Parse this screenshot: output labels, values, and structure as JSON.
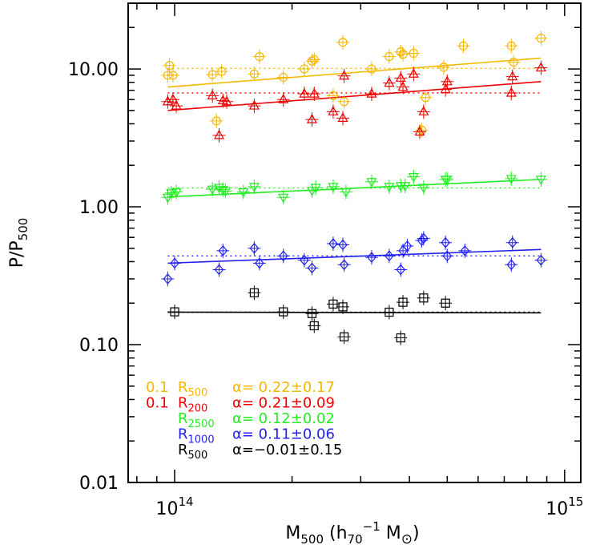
{
  "chart_data": {
    "type": "scatter",
    "xlabel": {
      "base": "M",
      "sub": "500",
      "rest1": " (h",
      "sub2": "70",
      "sup2": "−1",
      "rest2": " M",
      "sym": "⊙",
      "rest3": ")"
    },
    "ylabel": {
      "base": "P/P",
      "sub": "500"
    },
    "x_scale": "log",
    "y_scale": "log",
    "xlim": [
      76000000000000.0,
      1100000000000000.0
    ],
    "ylim": [
      0.01,
      30
    ],
    "x_ticks": [
      {
        "value": 100000000000000.0,
        "base": "10",
        "exp": "14"
      },
      {
        "value": 1000000000000000.0,
        "base": "10",
        "exp": "15"
      }
    ],
    "y_ticks": [
      {
        "value": 0.01,
        "label": "0.01"
      },
      {
        "value": 0.1,
        "label": "0.10"
      },
      {
        "value": 1,
        "label": "1.00"
      },
      {
        "value": 10,
        "label": "10.00"
      }
    ],
    "series": [
      {
        "key": "orange",
        "color": "#f5b800",
        "marker": "circle-plus",
        "legend": {
          "prefix": "0.1 ",
          "r": "R",
          "rsub": "500",
          "alpha": "α=  0.22±0.17"
        },
        "fit": {
          "x0": 96000000000000.0,
          "y0": 7.4,
          "x1": 870000000000000.0,
          "y1": 12.0
        },
        "mean": 10.1,
        "points": [
          [
            96000000000000.0,
            9.0
          ],
          [
            97000000000000.0,
            10.6
          ],
          [
            99000000000000.0,
            9.0
          ],
          [
            125000000000000.0,
            9.1
          ],
          [
            132000000000000.0,
            9.6
          ],
          [
            128000000000000.0,
            4.2
          ],
          [
            160000000000000.0,
            9.2
          ],
          [
            165000000000000.0,
            12.3
          ],
          [
            190000000000000.0,
            8.7
          ],
          [
            215000000000000.0,
            10.0
          ],
          [
            225000000000000.0,
            11.4
          ],
          [
            228000000000000.0,
            11.7
          ],
          [
            255000000000000.0,
            6.4
          ],
          [
            272000000000000.0,
            5.8
          ],
          [
            270000000000000.0,
            15.6
          ],
          [
            320000000000000.0,
            10.0
          ],
          [
            355000000000000.0,
            12.3
          ],
          [
            380000000000000.0,
            13.3
          ],
          [
            385000000000000.0,
            12.8
          ],
          [
            410000000000000.0,
            13.0
          ],
          [
            430000000000000.0,
            3.6
          ],
          [
            440000000000000.0,
            6.2
          ],
          [
            490000000000000.0,
            10.3
          ],
          [
            550000000000000.0,
            14.7
          ],
          [
            730000000000000.0,
            14.7
          ],
          [
            740000000000000.0,
            11.2
          ],
          [
            870000000000000.0,
            16.7
          ]
        ]
      },
      {
        "key": "red",
        "color": "#ee0000",
        "marker": "triangle-up",
        "legend": {
          "prefix": "0.1 ",
          "r": "R",
          "rsub": "200",
          "alpha": "α=  0.21±0.09"
        },
        "fit": {
          "x0": 96000000000000.0,
          "y0": 5.0,
          "x1": 870000000000000.0,
          "y1": 8.1
        },
        "mean": 6.7,
        "points": [
          [
            96000000000000.0,
            5.8
          ],
          [
            99000000000000.0,
            6.0
          ],
          [
            101000000000000.0,
            5.4
          ],
          [
            125000000000000.0,
            6.4
          ],
          [
            130000000000000.0,
            3.3
          ],
          [
            133000000000000.0,
            5.9
          ],
          [
            136000000000000.0,
            5.8
          ],
          [
            160000000000000.0,
            5.4
          ],
          [
            190000000000000.0,
            6.0
          ],
          [
            215000000000000.0,
            6.6
          ],
          [
            225000000000000.0,
            4.3
          ],
          [
            228000000000000.0,
            6.6
          ],
          [
            255000000000000.0,
            4.9
          ],
          [
            270000000000000.0,
            4.4
          ],
          [
            272000000000000.0,
            8.9
          ],
          [
            320000000000000.0,
            6.6
          ],
          [
            355000000000000.0,
            7.9
          ],
          [
            380000000000000.0,
            8.6
          ],
          [
            385000000000000.0,
            7.4
          ],
          [
            410000000000000.0,
            9.2
          ],
          [
            425000000000000.0,
            3.5
          ],
          [
            435000000000000.0,
            4.9
          ],
          [
            495000000000000.0,
            7.1
          ],
          [
            500000000000000.0,
            8.1
          ],
          [
            730000000000000.0,
            6.7
          ],
          [
            735000000000000.0,
            8.8
          ],
          [
            870000000000000.0,
            10.2
          ]
        ]
      },
      {
        "key": "green",
        "color": "#22ee22",
        "marker": "triangle-down",
        "legend": {
          "prefix": "",
          "r": "R",
          "rsub": "2500",
          "alpha": "α=  0.12±0.02"
        },
        "fit": {
          "x0": 96000000000000.0,
          "y0": 1.18,
          "x1": 870000000000000.0,
          "y1": 1.58
        },
        "mean": 1.37,
        "points": [
          [
            96000000000000.0,
            1.17
          ],
          [
            98000000000000.0,
            1.26
          ],
          [
            101000000000000.0,
            1.28
          ],
          [
            125000000000000.0,
            1.34
          ],
          [
            130000000000000.0,
            1.38
          ],
          [
            133000000000000.0,
            1.33
          ],
          [
            135000000000000.0,
            1.3
          ],
          [
            150000000000000.0,
            1.28
          ],
          [
            160000000000000.0,
            1.4
          ],
          [
            190000000000000.0,
            1.17
          ],
          [
            225000000000000.0,
            1.31
          ],
          [
            230000000000000.0,
            1.38
          ],
          [
            255000000000000.0,
            1.4
          ],
          [
            275000000000000.0,
            1.28
          ],
          [
            320000000000000.0,
            1.52
          ],
          [
            355000000000000.0,
            1.4
          ],
          [
            380000000000000.0,
            1.42
          ],
          [
            390000000000000.0,
            1.42
          ],
          [
            410000000000000.0,
            1.65
          ],
          [
            435000000000000.0,
            1.38
          ],
          [
            495000000000000.0,
            1.58
          ],
          [
            500000000000000.0,
            1.58
          ],
          [
            730000000000000.0,
            1.6
          ],
          [
            870000000000000.0,
            1.58
          ]
        ]
      },
      {
        "key": "blue",
        "color": "#2222ee",
        "marker": "diamond-plus",
        "legend": {
          "prefix": "",
          "r": "R",
          "rsub": "1000",
          "alpha": "α=  0.11±0.06"
        },
        "fit": {
          "x0": 96000000000000.0,
          "y0": 0.39,
          "x1": 870000000000000.0,
          "y1": 0.49
        },
        "mean": 0.44,
        "points": [
          [
            96000000000000.0,
            0.3
          ],
          [
            100000000000000.0,
            0.39
          ],
          [
            130000000000000.0,
            0.35
          ],
          [
            133000000000000.0,
            0.48
          ],
          [
            160000000000000.0,
            0.5
          ],
          [
            165000000000000.0,
            0.39
          ],
          [
            190000000000000.0,
            0.44
          ],
          [
            215000000000000.0,
            0.41
          ],
          [
            225000000000000.0,
            0.36
          ],
          [
            255000000000000.0,
            0.54
          ],
          [
            270000000000000.0,
            0.53
          ],
          [
            272000000000000.0,
            0.38
          ],
          [
            320000000000000.0,
            0.43
          ],
          [
            355000000000000.0,
            0.44
          ],
          [
            380000000000000.0,
            0.35
          ],
          [
            385000000000000.0,
            0.48
          ],
          [
            395000000000000.0,
            0.52
          ],
          [
            430000000000000.0,
            0.57
          ],
          [
            435000000000000.0,
            0.59
          ],
          [
            495000000000000.0,
            0.55
          ],
          [
            500000000000000.0,
            0.44
          ],
          [
            555000000000000.0,
            0.48
          ],
          [
            730000000000000.0,
            0.38
          ],
          [
            735000000000000.0,
            0.55
          ],
          [
            870000000000000.0,
            0.41
          ]
        ]
      },
      {
        "key": "black",
        "color": "#000000",
        "marker": "square-plus",
        "legend": {
          "prefix": "",
          "r": "R",
          "rsub": "500",
          "alpha": "α=−0.01±0.15"
        },
        "fit": {
          "x0": 96000000000000.0,
          "y0": 0.172,
          "x1": 870000000000000.0,
          "y1": 0.17
        },
        "mean": 0.172,
        "points": [
          [
            100000000000000.0,
            0.173
          ],
          [
            160000000000000.0,
            0.238
          ],
          [
            190000000000000.0,
            0.173
          ],
          [
            225000000000000.0,
            0.168
          ],
          [
            228000000000000.0,
            0.137
          ],
          [
            255000000000000.0,
            0.197
          ],
          [
            270000000000000.0,
            0.188
          ],
          [
            272000000000000.0,
            0.114
          ],
          [
            355000000000000.0,
            0.172
          ],
          [
            380000000000000.0,
            0.112
          ],
          [
            385000000000000.0,
            0.203
          ],
          [
            435000000000000.0,
            0.218
          ],
          [
            495000000000000.0,
            0.2
          ]
        ]
      }
    ]
  }
}
